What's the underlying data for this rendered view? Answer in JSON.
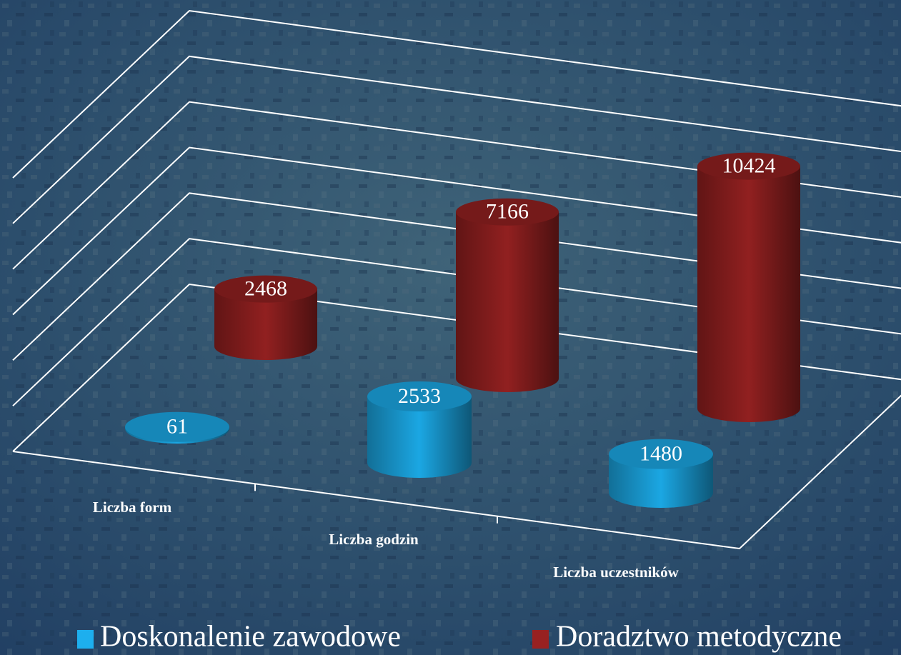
{
  "chart_data": {
    "type": "bar3d",
    "categories": [
      "Liczba form",
      "Liczba godzin",
      "Liczba uczestników"
    ],
    "series": [
      {
        "name": "Doskonalenie zawodowe",
        "color": "#1a9fd8",
        "values": [
          61,
          2533,
          1480
        ]
      },
      {
        "name": "Doradztwo metodyczne",
        "color": "#8a1e1e",
        "values": [
          2468,
          7166,
          10424
        ]
      }
    ],
    "ylim": [
      0,
      12000
    ],
    "yticks": [
      0,
      2000,
      4000,
      6000,
      8000,
      10000,
      12000
    ],
    "grid": true
  }
}
